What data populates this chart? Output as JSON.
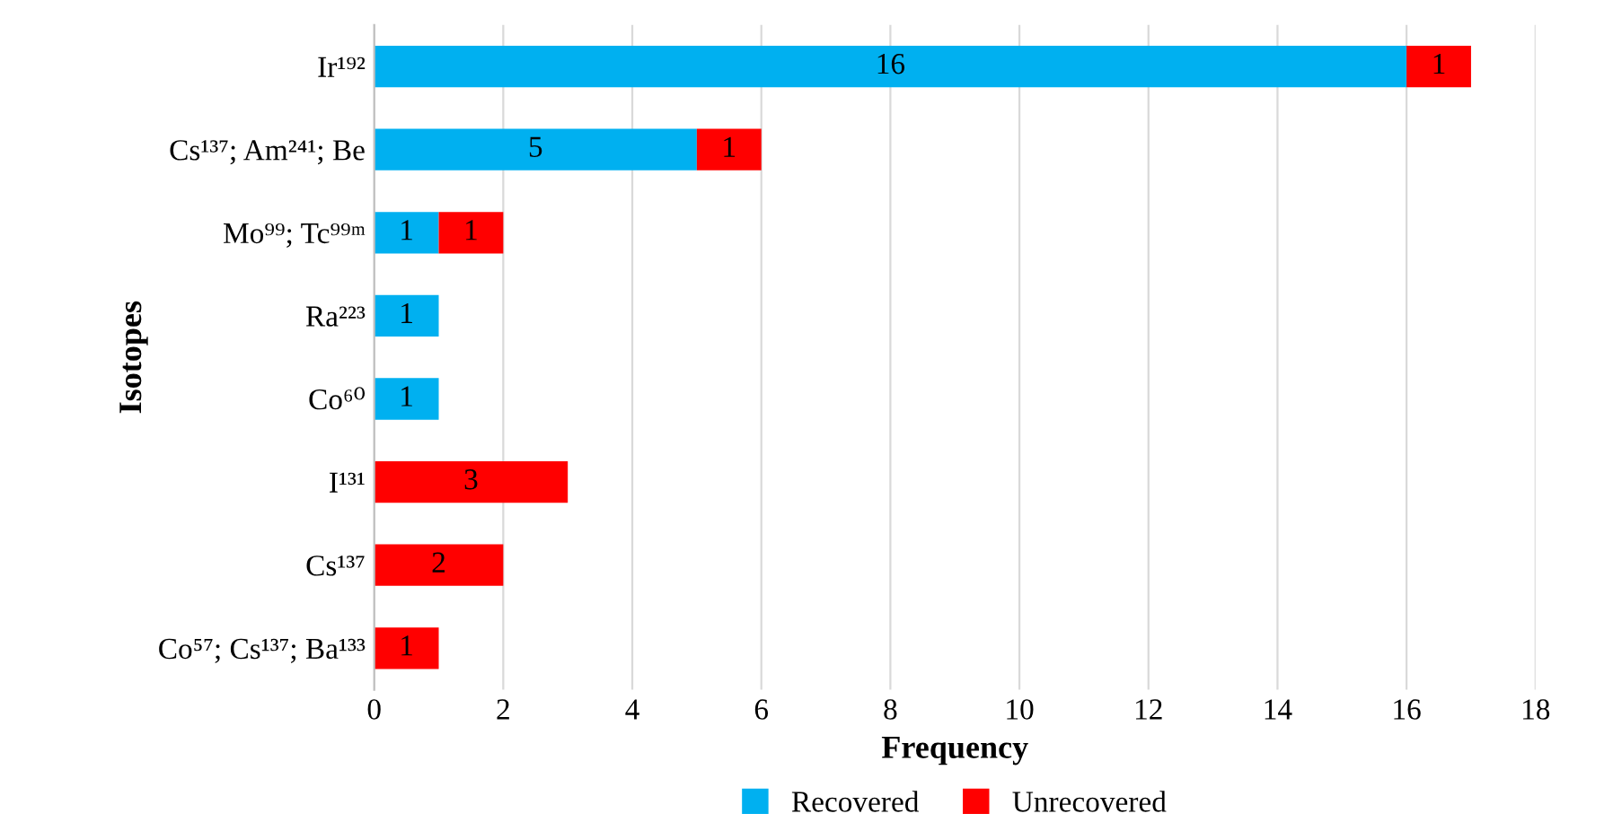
{
  "chart_data": {
    "type": "bar",
    "orientation": "horizontal",
    "stacked": true,
    "xlabel": "Frequency",
    "ylabel": "Isotopes",
    "categories": [
      "Ir¹⁹²",
      "Cs¹³⁷; Am²⁴¹; Be",
      "Mo⁹⁹; Tc⁹⁹ᵐ",
      "Ra²²³",
      "Co⁶⁰",
      "I¹³¹",
      "Cs¹³⁷",
      "Co⁵⁷; Cs¹³⁷; Ba¹³³"
    ],
    "series": [
      {
        "name": "Recovered",
        "color": "#00b0f0",
        "values": [
          16,
          5,
          1,
          1,
          1,
          null,
          null,
          null
        ]
      },
      {
        "name": "Unrecovered",
        "color": "#ff0000",
        "values": [
          1,
          1,
          1,
          null,
          null,
          3,
          2,
          1
        ]
      }
    ],
    "xlim": [
      0,
      18
    ],
    "xticks": [
      0,
      2,
      4,
      6,
      8,
      10,
      12,
      14,
      16,
      18
    ],
    "grid": "x",
    "legend": "bottom",
    "data_labels": true
  }
}
